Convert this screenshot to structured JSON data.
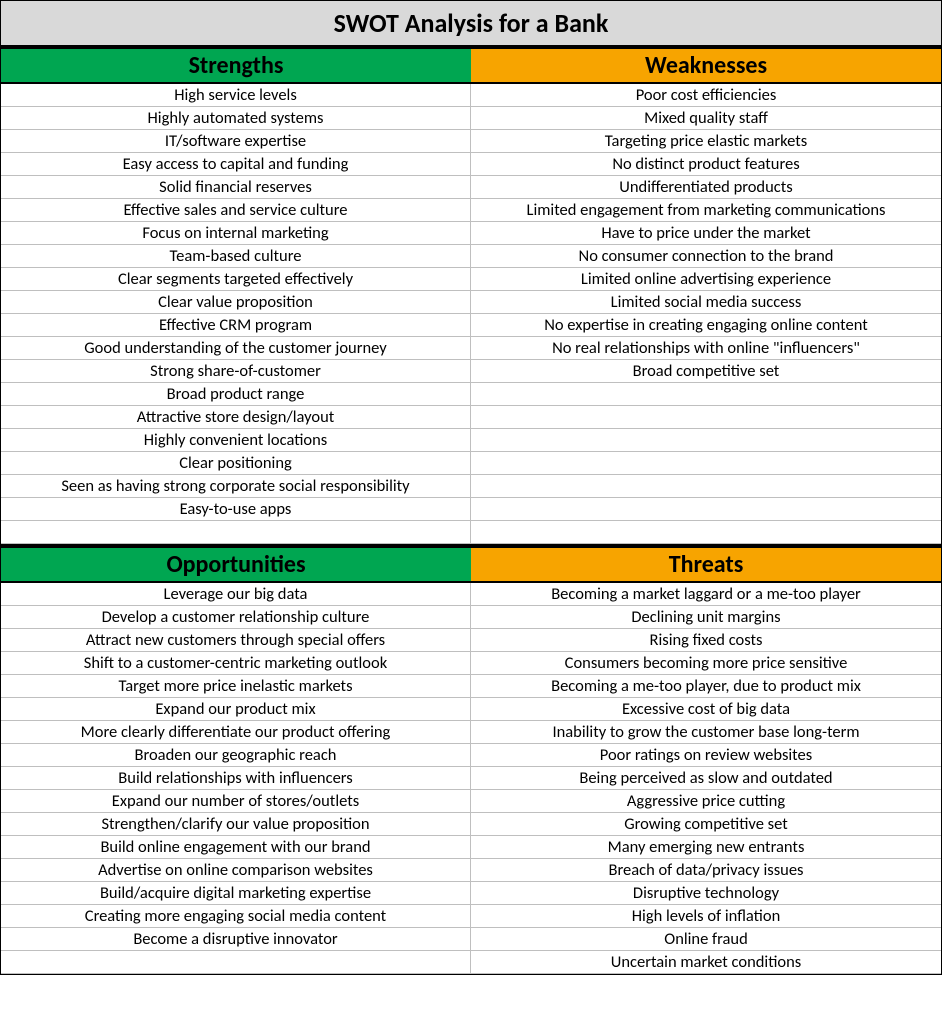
{
  "title": "SWOT Analysis for a Bank",
  "colors": {
    "title_bg": "#d9d9d9",
    "green": "#00a651",
    "orange": "#f7a400",
    "row_border": "#bfbfbf",
    "heavy_border": "#000000"
  },
  "quadrants": {
    "strengths": {
      "label": "Strengths",
      "header_color": "green",
      "items": [
        "High service levels",
        "Highly automated systems",
        "IT/software expertise",
        "Easy access to capital and funding",
        "Solid financial reserves",
        "Effective sales and service culture",
        "Focus on internal marketing",
        "Team-based culture",
        "Clear segments targeted effectively",
        "Clear value proposition",
        "Effective CRM program",
        "Good understanding of the customer journey",
        "Strong share-of-customer",
        "Broad product range",
        "Attractive store design/layout",
        "Highly convenient locations",
        "Clear positioning",
        "Seen as having strong corporate social responsibility",
        "Easy-to-use apps",
        ""
      ]
    },
    "weaknesses": {
      "label": "Weaknesses",
      "header_color": "orange",
      "items": [
        "Poor cost efficiencies",
        "Mixed quality staff",
        "Targeting price elastic markets",
        "No distinct product features",
        "Undifferentiated products",
        "Limited engagement from marketing communications",
        "Have to price under the market",
        "No consumer connection to the brand",
        "Limited online advertising experience",
        "Limited social media success",
        "No expertise in creating engaging online content",
        "No real relationships with online \"influencers\"",
        "Broad competitive set",
        "",
        "",
        "",
        "",
        "",
        "",
        ""
      ]
    },
    "opportunities": {
      "label": "Opportunities",
      "header_color": "green",
      "items": [
        "Leverage our big data",
        "Develop a customer relationship culture",
        "Attract new customers through special offers",
        "Shift to a customer-centric marketing outlook",
        "Target more price inelastic markets",
        "Expand our product mix",
        "More clearly differentiate our product offering",
        "Broaden our geographic reach",
        "Build relationships with influencers",
        "Expand our number of stores/outlets",
        "Strengthen/clarify our value proposition",
        "Build online engagement with our brand",
        "Advertise on online comparison websites",
        "Build/acquire digital marketing expertise",
        "Creating more engaging social media content",
        "Become a disruptive innovator",
        ""
      ]
    },
    "threats": {
      "label": "Threats",
      "header_color": "orange",
      "items": [
        "Becoming a market laggard or a me-too player",
        "Declining unit margins",
        "Rising fixed costs",
        "Consumers becoming more price sensitive",
        "Becoming a me-too player, due to product mix",
        "Excessive cost of big data",
        "Inability to grow the customer base long-term",
        "Poor ratings on review websites",
        "Being perceived as slow and outdated",
        "Aggressive price cutting",
        "Growing competitive set",
        "Many emerging new entrants",
        "Breach of data/privacy issues",
        "Disruptive technology",
        "High levels of inflation",
        "Online fraud",
        "Uncertain market conditions"
      ]
    }
  }
}
